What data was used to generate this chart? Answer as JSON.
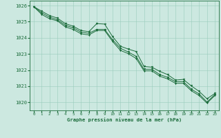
{
  "title": "Graphe pression niveau de la mer (hPa)",
  "background_color": "#cce8e0",
  "grid_color": "#99ccbb",
  "line_color": "#1a6b3a",
  "marker_color": "#1a6b3a",
  "xlim": [
    -0.5,
    23.5
  ],
  "ylim": [
    1019.5,
    1026.3
  ],
  "yticks": [
    1020,
    1021,
    1022,
    1023,
    1024,
    1025,
    1026
  ],
  "xticks": [
    0,
    1,
    2,
    3,
    4,
    5,
    6,
    7,
    8,
    9,
    10,
    11,
    12,
    13,
    14,
    15,
    16,
    17,
    18,
    19,
    20,
    21,
    22,
    23
  ],
  "series1_x": [
    0,
    1,
    2,
    3,
    4,
    5,
    6,
    7,
    8,
    9,
    10,
    11,
    12,
    13,
    14,
    15,
    16,
    17,
    18,
    19,
    20,
    21,
    22,
    23
  ],
  "series1_y": [
    1025.93,
    1025.65,
    1025.38,
    1025.22,
    1024.88,
    1024.72,
    1024.45,
    1024.38,
    1024.88,
    1024.85,
    1024.08,
    1023.48,
    1023.3,
    1023.15,
    1022.22,
    1022.18,
    1021.92,
    1021.72,
    1021.38,
    1021.42,
    1021.02,
    1020.68,
    1020.22,
    1020.55
  ],
  "series2_x": [
    0,
    1,
    2,
    3,
    4,
    5,
    6,
    7,
    8,
    9,
    10,
    11,
    12,
    13,
    14,
    15,
    16,
    17,
    18,
    19,
    20,
    21,
    22,
    23
  ],
  "series2_y": [
    1025.93,
    1025.55,
    1025.28,
    1025.12,
    1024.78,
    1024.62,
    1024.35,
    1024.28,
    1024.52,
    1024.52,
    1023.88,
    1023.35,
    1023.12,
    1022.85,
    1022.05,
    1022.05,
    1021.72,
    1021.55,
    1021.28,
    1021.28,
    1020.82,
    1020.52,
    1020.02,
    1020.48
  ],
  "series3_x": [
    0,
    1,
    2,
    3,
    4,
    5,
    6,
    7,
    8,
    9,
    10,
    11,
    12,
    13,
    14,
    15,
    16,
    17,
    18,
    19,
    20,
    21,
    22,
    23
  ],
  "series3_y": [
    1025.93,
    1025.45,
    1025.18,
    1025.05,
    1024.68,
    1024.52,
    1024.25,
    1024.18,
    1024.45,
    1024.45,
    1023.78,
    1023.22,
    1023.02,
    1022.72,
    1021.95,
    1021.95,
    1021.62,
    1021.45,
    1021.18,
    1021.18,
    1020.72,
    1020.42,
    1019.95,
    1020.42
  ]
}
